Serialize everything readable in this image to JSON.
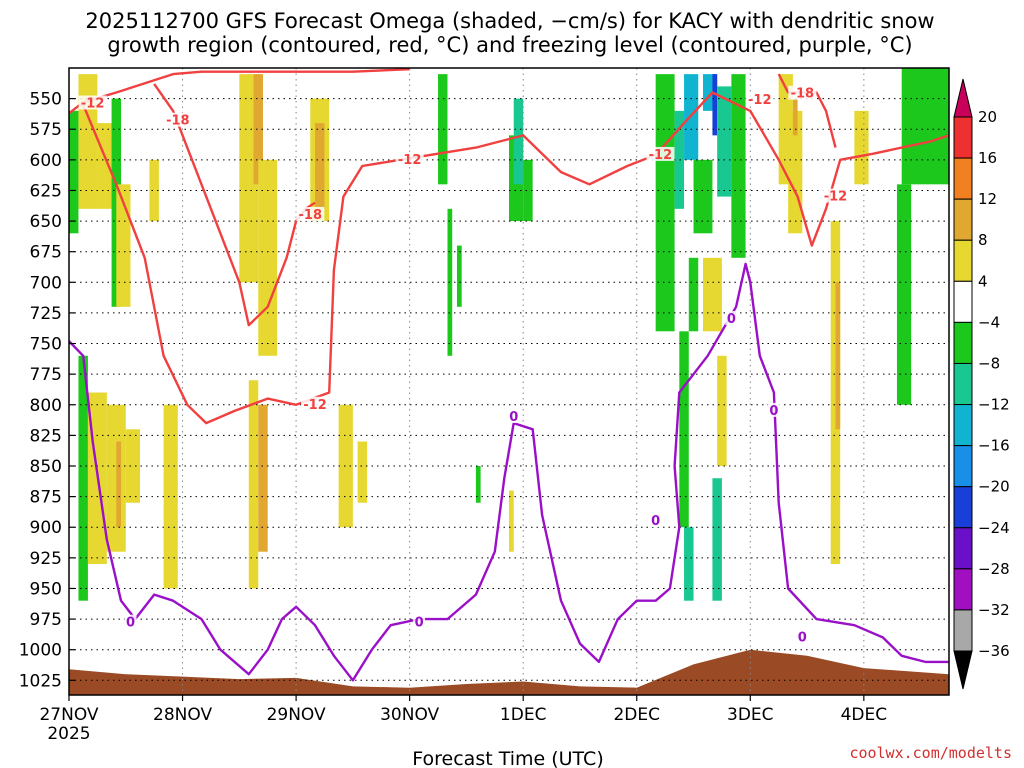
{
  "chart_data": {
    "type": "heatmap",
    "title_line1": "2025112700 GFS Forecast Omega (shaded, −cm/s) for KACY with dendritic snow",
    "title_line2": "growth region (contoured, red, °C) and freezing level (contoured, purple, °C)",
    "xlabel": "Forecast Time (UTC)",
    "credit": "coolwx.com/modelts",
    "x_range_hours": [
      0,
      186
    ],
    "x_ticks": [
      {
        "h": 0,
        "label": "27NOV",
        "sub": "2025"
      },
      {
        "h": 24,
        "label": "28NOV",
        "sub": ""
      },
      {
        "h": 48,
        "label": "29NOV",
        "sub": ""
      },
      {
        "h": 72,
        "label": "30NOV",
        "sub": ""
      },
      {
        "h": 96,
        "label": "1DEC",
        "sub": ""
      },
      {
        "h": 120,
        "label": "2DEC",
        "sub": ""
      },
      {
        "h": 144,
        "label": "3DEC",
        "sub": ""
      },
      {
        "h": 168,
        "label": "4DEC",
        "sub": ""
      }
    ],
    "y_range_hpa": [
      525,
      1037
    ],
    "y_ticks": [
      "550",
      "575",
      "600",
      "625",
      "650",
      "675",
      "700",
      "725",
      "750",
      "775",
      "800",
      "825",
      "850",
      "875",
      "900",
      "925",
      "950",
      "975",
      "1000",
      "1025"
    ],
    "colorbar": {
      "levels": [
        "20",
        "16",
        "12",
        "8",
        "4",
        "−4",
        "−8",
        "−12",
        "−16",
        "−20",
        "−24",
        "−28",
        "−32",
        "−36"
      ],
      "colors": [
        "#c8005a",
        "#ee3030",
        "#f08020",
        "#e0a830",
        "#e6d830",
        "#ffffff",
        "#1cc81c",
        "#18c890",
        "#10b4d0",
        "#1890e8",
        "#1840d8",
        "#6a10c8",
        "#a010c0",
        "#a8a8a8",
        "#000000"
      ]
    },
    "omega_cells": [
      {
        "t0": 0,
        "t1": 2,
        "p0": 560,
        "p1": 660,
        "c": 6
      },
      {
        "t0": 2,
        "t1": 6,
        "p0": 530,
        "p1": 640,
        "c": 4
      },
      {
        "t0": 6,
        "t1": 10,
        "p0": 570,
        "p1": 640,
        "c": 4
      },
      {
        "t0": 9,
        "t1": 11,
        "p0": 550,
        "p1": 720,
        "c": 6
      },
      {
        "t0": 10,
        "t1": 13,
        "p0": 620,
        "p1": 720,
        "c": 4
      },
      {
        "t0": 17,
        "t1": 19,
        "p0": 600,
        "p1": 650,
        "c": 4
      },
      {
        "t0": 2,
        "t1": 4,
        "p0": 760,
        "p1": 960,
        "c": 6
      },
      {
        "t0": 4,
        "t1": 8,
        "p0": 790,
        "p1": 930,
        "c": 4
      },
      {
        "t0": 8,
        "t1": 12,
        "p0": 800,
        "p1": 920,
        "c": 4
      },
      {
        "t0": 10,
        "t1": 11,
        "p0": 830,
        "p1": 900,
        "c": 3
      },
      {
        "t0": 12,
        "t1": 15,
        "p0": 820,
        "p1": 880,
        "c": 4
      },
      {
        "t0": 20,
        "t1": 23,
        "p0": 800,
        "p1": 950,
        "c": 4
      },
      {
        "t0": 36,
        "t1": 40,
        "p0": 530,
        "p1": 700,
        "c": 4
      },
      {
        "t0": 39,
        "t1": 41,
        "p0": 530,
        "p1": 620,
        "c": 3
      },
      {
        "t0": 40,
        "t1": 44,
        "p0": 600,
        "p1": 760,
        "c": 4
      },
      {
        "t0": 38,
        "t1": 40,
        "p0": 780,
        "p1": 950,
        "c": 4
      },
      {
        "t0": 40,
        "t1": 42,
        "p0": 800,
        "p1": 920,
        "c": 3
      },
      {
        "t0": 51,
        "t1": 55,
        "p0": 550,
        "p1": 650,
        "c": 4
      },
      {
        "t0": 52,
        "t1": 54,
        "p0": 570,
        "p1": 640,
        "c": 3
      },
      {
        "t0": 57,
        "t1": 60,
        "p0": 800,
        "p1": 900,
        "c": 4
      },
      {
        "t0": 61,
        "t1": 63,
        "p0": 830,
        "p1": 880,
        "c": 4
      },
      {
        "t0": 78,
        "t1": 80,
        "p0": 530,
        "p1": 620,
        "c": 6
      },
      {
        "t0": 80,
        "t1": 81,
        "p0": 640,
        "p1": 760,
        "c": 6
      },
      {
        "t0": 82,
        "t1": 83,
        "p0": 670,
        "p1": 720,
        "c": 6
      },
      {
        "t0": 86,
        "t1": 87,
        "p0": 850,
        "p1": 880,
        "c": 6
      },
      {
        "t0": 93,
        "t1": 96,
        "p0": 580,
        "p1": 650,
        "c": 6
      },
      {
        "t0": 94,
        "t1": 96,
        "p0": 550,
        "p1": 620,
        "c": 7
      },
      {
        "t0": 96,
        "t1": 98,
        "p0": 600,
        "p1": 650,
        "c": 6
      },
      {
        "t0": 93,
        "t1": 94,
        "p0": 870,
        "p1": 920,
        "c": 4
      },
      {
        "t0": 124,
        "t1": 128,
        "p0": 530,
        "p1": 740,
        "c": 6
      },
      {
        "t0": 128,
        "t1": 130,
        "p0": 560,
        "p1": 640,
        "c": 7
      },
      {
        "t0": 130,
        "t1": 133,
        "p0": 530,
        "p1": 600,
        "c": 8
      },
      {
        "t0": 132,
        "t1": 136,
        "p0": 600,
        "p1": 660,
        "c": 6
      },
      {
        "t0": 134,
        "t1": 137,
        "p0": 530,
        "p1": 560,
        "c": 8
      },
      {
        "t0": 136,
        "t1": 137,
        "p0": 530,
        "p1": 580,
        "c": 10
      },
      {
        "t0": 137,
        "t1": 140,
        "p0": 540,
        "p1": 630,
        "c": 7
      },
      {
        "t0": 140,
        "t1": 143,
        "p0": 530,
        "p1": 680,
        "c": 6
      },
      {
        "t0": 131,
        "t1": 133,
        "p0": 680,
        "p1": 740,
        "c": 6
      },
      {
        "t0": 129,
        "t1": 131,
        "p0": 740,
        "p1": 900,
        "c": 6
      },
      {
        "t0": 130,
        "t1": 132,
        "p0": 900,
        "p1": 960,
        "c": 7
      },
      {
        "t0": 136,
        "t1": 138,
        "p0": 860,
        "p1": 960,
        "c": 7
      },
      {
        "t0": 134,
        "t1": 138,
        "p0": 680,
        "p1": 740,
        "c": 4
      },
      {
        "t0": 137,
        "t1": 139,
        "p0": 760,
        "p1": 850,
        "c": 4
      },
      {
        "t0": 150,
        "t1": 153,
        "p0": 530,
        "p1": 620,
        "c": 4
      },
      {
        "t0": 152,
        "t1": 155,
        "p0": 560,
        "p1": 660,
        "c": 4
      },
      {
        "t0": 153,
        "t1": 154,
        "p0": 550,
        "p1": 580,
        "c": 3
      },
      {
        "t0": 161,
        "t1": 163,
        "p0": 650,
        "p1": 930,
        "c": 4
      },
      {
        "t0": 162,
        "t1": 163,
        "p0": 700,
        "p1": 820,
        "c": 3
      },
      {
        "t0": 166,
        "t1": 169,
        "p0": 560,
        "p1": 620,
        "c": 4
      },
      {
        "t0": 175,
        "t1": 178,
        "p0": 620,
        "p1": 800,
        "c": 6
      },
      {
        "t0": 176,
        "t1": 186,
        "p0": 525,
        "p1": 620,
        "c": 6
      }
    ],
    "surface": [
      {
        "h": 0,
        "p": 1016
      },
      {
        "h": 12,
        "p": 1020
      },
      {
        "h": 24,
        "p": 1022
      },
      {
        "h": 36,
        "p": 1024
      },
      {
        "h": 48,
        "p": 1023
      },
      {
        "h": 60,
        "p": 1030
      },
      {
        "h": 72,
        "p": 1031
      },
      {
        "h": 84,
        "p": 1028
      },
      {
        "h": 96,
        "p": 1026
      },
      {
        "h": 108,
        "p": 1030
      },
      {
        "h": 120,
        "p": 1031
      },
      {
        "h": 132,
        "p": 1012
      },
      {
        "h": 144,
        "p": 1000
      },
      {
        "h": 156,
        "p": 1005
      },
      {
        "h": 168,
        "p": 1015
      },
      {
        "h": 186,
        "p": 1020
      }
    ],
    "contours": [
      {
        "name": "dgz-minus12-upper",
        "color": "#f04040",
        "points": [
          {
            "h": 0,
            "p": 562
          },
          {
            "h": 3,
            "p": 553
          },
          {
            "h": 10,
            "p": 545
          },
          {
            "h": 14,
            "p": 540
          },
          {
            "h": 22,
            "p": 530
          },
          {
            "h": 28,
            "p": 528
          },
          {
            "h": 36,
            "p": 528
          },
          {
            "h": 48,
            "p": 528
          },
          {
            "h": 60,
            "p": 528
          },
          {
            "h": 72,
            "p": 526
          }
        ]
      },
      {
        "name": "dgz-minus12-main",
        "color": "#f04040",
        "points": [
          {
            "h": 3,
            "p": 555
          },
          {
            "h": 10,
            "p": 620
          },
          {
            "h": 16,
            "p": 680
          },
          {
            "h": 20,
            "p": 760
          },
          {
            "h": 25,
            "p": 800
          },
          {
            "h": 29,
            "p": 815
          },
          {
            "h": 35,
            "p": 805
          },
          {
            "h": 42,
            "p": 795
          },
          {
            "h": 48,
            "p": 800
          },
          {
            "h": 55,
            "p": 790
          },
          {
            "h": 56,
            "p": 690
          },
          {
            "h": 58,
            "p": 630
          },
          {
            "h": 62,
            "p": 605
          },
          {
            "h": 70,
            "p": 600
          },
          {
            "h": 78,
            "p": 595
          },
          {
            "h": 86,
            "p": 590
          },
          {
            "h": 96,
            "p": 580
          },
          {
            "h": 104,
            "p": 610
          },
          {
            "h": 110,
            "p": 620
          },
          {
            "h": 118,
            "p": 605
          },
          {
            "h": 124,
            "p": 596
          },
          {
            "h": 130,
            "p": 570
          },
          {
            "h": 136,
            "p": 545
          },
          {
            "h": 144,
            "p": 560
          },
          {
            "h": 150,
            "p": 600
          },
          {
            "h": 154,
            "p": 630
          },
          {
            "h": 157,
            "p": 670
          },
          {
            "h": 160,
            "p": 640
          },
          {
            "h": 163,
            "p": 600
          },
          {
            "h": 170,
            "p": 595
          },
          {
            "h": 176,
            "p": 590
          },
          {
            "h": 182,
            "p": 585
          },
          {
            "h": 186,
            "p": 580
          }
        ]
      },
      {
        "name": "dgz-minus18",
        "color": "#f04040",
        "points": [
          {
            "h": 18,
            "p": 538
          },
          {
            "h": 22,
            "p": 560
          },
          {
            "h": 26,
            "p": 600
          },
          {
            "h": 32,
            "p": 660
          },
          {
            "h": 36,
            "p": 700
          },
          {
            "h": 38,
            "p": 735
          },
          {
            "h": 42,
            "p": 720
          },
          {
            "h": 46,
            "p": 680
          },
          {
            "h": 48,
            "p": 650
          },
          {
            "h": 50,
            "p": 640
          },
          {
            "h": 52,
            "p": 635
          }
        ]
      },
      {
        "name": "dgz-minus18-right",
        "color": "#f04040",
        "points": [
          {
            "h": 150,
            "p": 530
          },
          {
            "h": 152,
            "p": 545
          },
          {
            "h": 158,
            "p": 545
          },
          {
            "h": 160,
            "p": 560
          },
          {
            "h": 162,
            "p": 590
          }
        ]
      },
      {
        "name": "freezing-level-0",
        "color": "#9a10c8",
        "points": [
          {
            "h": 0,
            "p": 748
          },
          {
            "h": 3,
            "p": 760
          },
          {
            "h": 5,
            "p": 830
          },
          {
            "h": 8,
            "p": 910
          },
          {
            "h": 11,
            "p": 960
          },
          {
            "h": 14,
            "p": 975
          },
          {
            "h": 18,
            "p": 955
          },
          {
            "h": 22,
            "p": 960
          },
          {
            "h": 28,
            "p": 975
          },
          {
            "h": 32,
            "p": 1000
          },
          {
            "h": 38,
            "p": 1020
          },
          {
            "h": 42,
            "p": 1000
          },
          {
            "h": 45,
            "p": 975
          },
          {
            "h": 48,
            "p": 965
          },
          {
            "h": 52,
            "p": 980
          },
          {
            "h": 56,
            "p": 1005
          },
          {
            "h": 60,
            "p": 1025
          },
          {
            "h": 64,
            "p": 1000
          },
          {
            "h": 68,
            "p": 980
          },
          {
            "h": 74,
            "p": 975
          },
          {
            "h": 80,
            "p": 975
          },
          {
            "h": 86,
            "p": 955
          },
          {
            "h": 90,
            "p": 920
          },
          {
            "h": 92,
            "p": 860
          },
          {
            "h": 94,
            "p": 815
          },
          {
            "h": 98,
            "p": 820
          },
          {
            "h": 100,
            "p": 890
          },
          {
            "h": 104,
            "p": 960
          },
          {
            "h": 108,
            "p": 995
          },
          {
            "h": 112,
            "p": 1010
          },
          {
            "h": 116,
            "p": 975
          },
          {
            "h": 120,
            "p": 960
          },
          {
            "h": 124,
            "p": 960
          },
          {
            "h": 127,
            "p": 950
          },
          {
            "h": 129,
            "p": 900
          },
          {
            "h": 128,
            "p": 850
          },
          {
            "h": 129,
            "p": 790
          },
          {
            "h": 132,
            "p": 775
          },
          {
            "h": 135,
            "p": 760
          },
          {
            "h": 138,
            "p": 740
          },
          {
            "h": 141,
            "p": 720
          },
          {
            "h": 143,
            "p": 685
          },
          {
            "h": 144,
            "p": 700
          },
          {
            "h": 146,
            "p": 760
          },
          {
            "h": 149,
            "p": 790
          },
          {
            "h": 150,
            "p": 880
          },
          {
            "h": 152,
            "p": 950
          },
          {
            "h": 158,
            "p": 975
          },
          {
            "h": 166,
            "p": 980
          },
          {
            "h": 172,
            "p": 990
          },
          {
            "h": 176,
            "p": 1005
          },
          {
            "h": 181,
            "p": 1010
          },
          {
            "h": 186,
            "p": 1010
          }
        ]
      }
    ],
    "contour_labels": [
      {
        "text": "-12",
        "h": 5,
        "p": 554,
        "color": "#f04040"
      },
      {
        "text": "-18",
        "h": 23,
        "p": 568,
        "color": "#f04040"
      },
      {
        "text": "-18",
        "h": 51,
        "p": 645,
        "color": "#f04040"
      },
      {
        "text": "-12",
        "h": 72,
        "p": 600,
        "color": "#f04040"
      },
      {
        "text": "-12",
        "h": 52,
        "p": 800,
        "color": "#f04040"
      },
      {
        "text": "-12",
        "h": 125,
        "p": 596,
        "color": "#f04040"
      },
      {
        "text": "-12",
        "h": 146,
        "p": 551,
        "color": "#f04040"
      },
      {
        "text": "-18",
        "h": 155,
        "p": 546,
        "color": "#f04040"
      },
      {
        "text": "-12",
        "h": 162,
        "p": 630,
        "color": "#f04040"
      },
      {
        "text": "0",
        "h": 13,
        "p": 978,
        "color": "#9a10c8"
      },
      {
        "text": "0",
        "h": 74,
        "p": 978,
        "color": "#9a10c8"
      },
      {
        "text": "0",
        "h": 94,
        "p": 810,
        "color": "#9a10c8"
      },
      {
        "text": "0",
        "h": 124,
        "p": 895,
        "color": "#9a10c8"
      },
      {
        "text": "0",
        "h": 140,
        "p": 730,
        "color": "#9a10c8"
      },
      {
        "text": "0",
        "h": 149,
        "p": 805,
        "color": "#9a10c8"
      },
      {
        "text": "0",
        "h": 155,
        "p": 990,
        "color": "#9a10c8"
      }
    ]
  }
}
